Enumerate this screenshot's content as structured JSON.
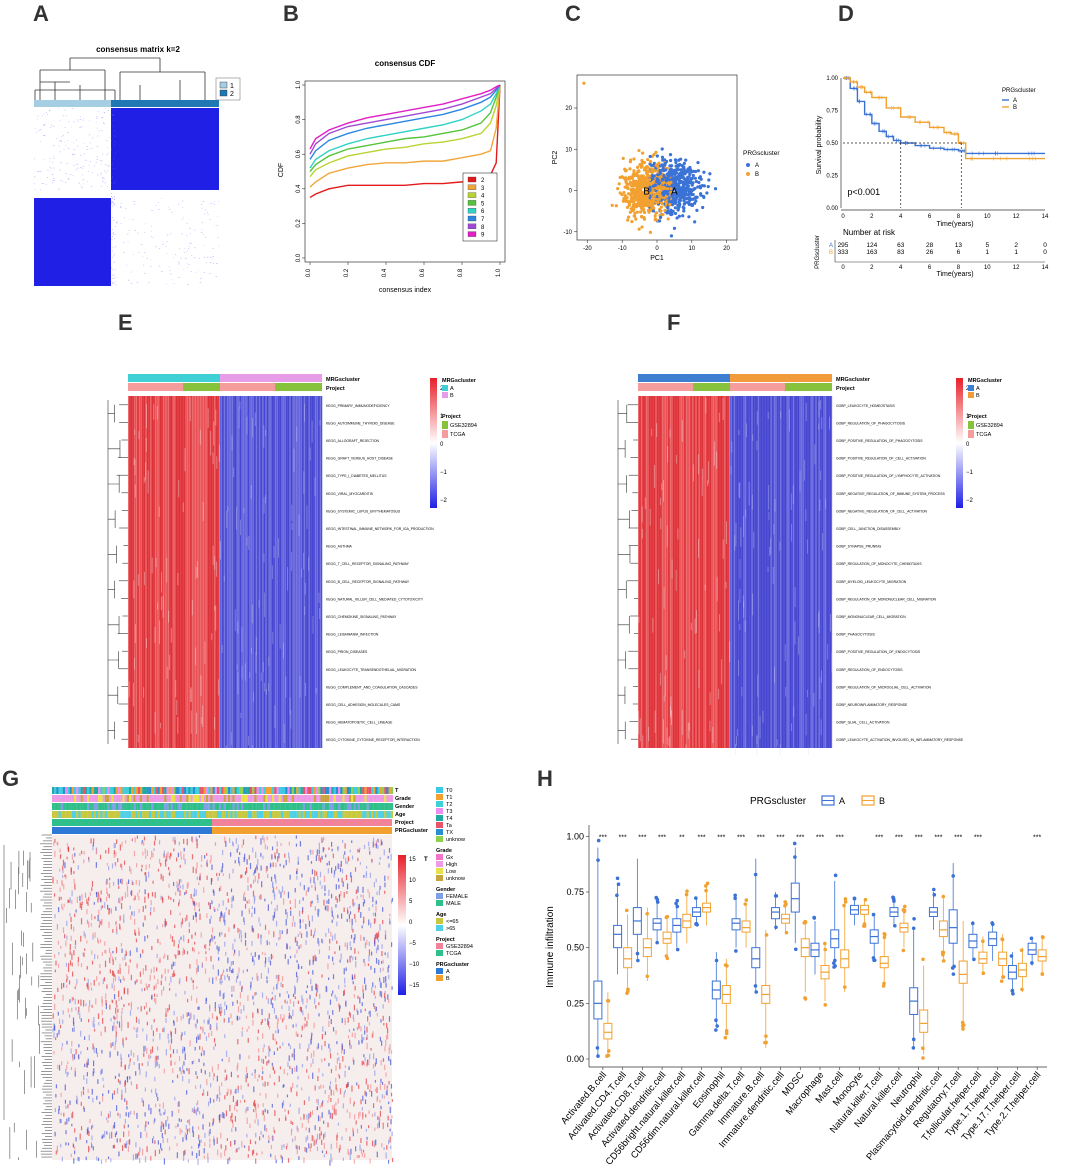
{
  "panel_letters": [
    "A",
    "B",
    "C",
    "D",
    "E",
    "F",
    "G",
    "H"
  ],
  "colors": {
    "heat_blue": "#1f1fe6",
    "cluster_light": "#a6cee3",
    "cluster_dark": "#1f78b4",
    "grpA": "#3a72d6",
    "grpB": "#f2a131",
    "red": "#e8202a",
    "teal": "#3fd0d6",
    "pink": "#e79ce8",
    "green": "#86c23b",
    "salmon": "#f59d9d",
    "orange": "#f29b3a",
    "blueE": "#3d7ed1"
  },
  "panel_a": {
    "title": "consensus matrix k=2",
    "legend": [
      "1",
      "2"
    ]
  },
  "panel_b": {
    "chart_data": {
      "type": "line",
      "title": "consensus CDF",
      "xlabel": "consensus index",
      "ylabel": "CDF",
      "xlim": [
        0,
        1
      ],
      "ylim": [
        0,
        1
      ],
      "x": [
        0,
        0.03,
        0.1,
        0.2,
        0.3,
        0.4,
        0.5,
        0.6,
        0.7,
        0.8,
        0.9,
        0.95,
        0.98,
        1.0
      ],
      "series": [
        {
          "name": "2",
          "color": "#e41a1c",
          "values": [
            0.35,
            0.37,
            0.4,
            0.42,
            0.42,
            0.42,
            0.42,
            0.43,
            0.43,
            0.44,
            0.45,
            0.48,
            0.55,
            1.0
          ]
        },
        {
          "name": "3",
          "color": "#f1a63a",
          "values": [
            0.41,
            0.44,
            0.49,
            0.52,
            0.54,
            0.55,
            0.55,
            0.56,
            0.56,
            0.58,
            0.6,
            0.62,
            0.75,
            1.0
          ]
        },
        {
          "name": "4",
          "color": "#b8d432",
          "values": [
            0.47,
            0.51,
            0.55,
            0.59,
            0.61,
            0.63,
            0.64,
            0.66,
            0.67,
            0.69,
            0.72,
            0.78,
            0.88,
            1.0
          ]
        },
        {
          "name": "5",
          "color": "#55c43c",
          "values": [
            0.5,
            0.54,
            0.59,
            0.63,
            0.65,
            0.67,
            0.69,
            0.7,
            0.72,
            0.74,
            0.78,
            0.84,
            0.93,
            1.0
          ]
        },
        {
          "name": "6",
          "color": "#2fd2c4",
          "values": [
            0.52,
            0.57,
            0.62,
            0.66,
            0.69,
            0.71,
            0.73,
            0.75,
            0.77,
            0.8,
            0.85,
            0.89,
            0.95,
            1.0
          ]
        },
        {
          "name": "7",
          "color": "#2b86e0",
          "values": [
            0.57,
            0.62,
            0.68,
            0.72,
            0.75,
            0.77,
            0.79,
            0.81,
            0.83,
            0.86,
            0.9,
            0.93,
            0.97,
            1.0
          ]
        },
        {
          "name": "8",
          "color": "#a149d6",
          "values": [
            0.6,
            0.66,
            0.72,
            0.76,
            0.78,
            0.8,
            0.82,
            0.84,
            0.86,
            0.89,
            0.93,
            0.95,
            0.98,
            1.0
          ]
        },
        {
          "name": "9",
          "color": "#e21fc6",
          "values": [
            0.63,
            0.69,
            0.74,
            0.78,
            0.81,
            0.83,
            0.85,
            0.87,
            0.89,
            0.92,
            0.95,
            0.97,
            0.99,
            1.0
          ]
        }
      ],
      "yticks": [
        "0.0",
        "0.2",
        "0.4",
        "0.6",
        "0.8",
        "1.0"
      ],
      "xticks": [
        "0.0",
        "0.2",
        "0.4",
        "0.6",
        "0.8",
        "1.0"
      ]
    }
  },
  "panel_c": {
    "chart_data": {
      "type": "scatter",
      "xlabel": "PC1",
      "ylabel": "PC2",
      "xlim": [
        -23,
        23
      ],
      "ylim": [
        -12,
        28
      ],
      "xticks": [
        "-20",
        "-10",
        "0",
        "10",
        "20"
      ],
      "yticks": [
        "-10",
        "0",
        "10",
        "20"
      ],
      "legend_title": "PRGscluster",
      "groups": [
        {
          "name": "A",
          "label": "A",
          "center": [
            5,
            1
          ],
          "spread": [
            5,
            4
          ],
          "n": 520
        },
        {
          "name": "B",
          "label": "B",
          "center": [
            -3,
            0
          ],
          "spread": [
            4.5,
            4
          ],
          "n": 580
        }
      ],
      "outlier": [
        -21,
        26
      ]
    }
  },
  "panel_d": {
    "chart_data": {
      "type": "line",
      "xlabel": "Time(years)",
      "ylabel": "Survival probability",
      "xlim": [
        0,
        14
      ],
      "ylim": [
        0,
        1
      ],
      "xticks": [
        "0",
        "2",
        "4",
        "6",
        "8",
        "10",
        "12",
        "14"
      ],
      "yticks": [
        "0.00",
        "0.25",
        "0.50",
        "0.75",
        "1.00"
      ],
      "pvalue": "p<0.001",
      "legend_title": "PRGscluster",
      "series": [
        {
          "name": "A",
          "color": "#3a72d6",
          "x": [
            0,
            0.5,
            1,
            1.5,
            2,
            2.5,
            3,
            3.5,
            4,
            5,
            6,
            7,
            8,
            8.5,
            10,
            12,
            14
          ],
          "values": [
            1.0,
            0.92,
            0.82,
            0.72,
            0.65,
            0.59,
            0.55,
            0.52,
            0.5,
            0.48,
            0.46,
            0.45,
            0.44,
            0.42,
            0.42,
            0.42,
            0.42
          ]
        },
        {
          "name": "B",
          "color": "#f2a131",
          "x": [
            0,
            0.5,
            1,
            1.5,
            2,
            3,
            4,
            5,
            6,
            7,
            7.5,
            8,
            8.5,
            10,
            12,
            14
          ],
          "values": [
            1.0,
            0.97,
            0.93,
            0.89,
            0.85,
            0.77,
            0.7,
            0.66,
            0.62,
            0.58,
            0.57,
            0.5,
            0.38,
            0.38,
            0.38,
            0.38
          ]
        }
      ],
      "median_markers": [
        4,
        8.2
      ],
      "risk_table": {
        "title": "Number at risk",
        "ylabel": "PRGscluster",
        "xlabel": "Time(years)",
        "rows": [
          {
            "name": "A",
            "values": [
              "295",
              "124",
              "63",
              "28",
              "13",
              "5",
              "2",
              "0"
            ]
          },
          {
            "name": "B",
            "values": [
              "333",
              "163",
              "83",
              "26",
              "6",
              "1",
              "1",
              "0"
            ]
          }
        ]
      }
    }
  },
  "panel_e": {
    "annotation_labels": [
      "MRGscluster",
      "Project"
    ],
    "legend": {
      "scale": [
        "2",
        "1",
        "0",
        "−1",
        "−2"
      ],
      "cluster_title": "MRGscluster",
      "cluster_items": [
        "A",
        "B"
      ],
      "project_title": "Project",
      "project_items": [
        "GSE32894",
        "TCGA"
      ]
    },
    "rows": [
      "KEGG_PRIMARY_IMMUNODEFICIENCY",
      "KEGG_AUTOIMMUNE_THYROID_DISEASE",
      "KEGG_ALLOGRAFT_REJECTION",
      "KEGG_GRAFT_VERSUS_HOST_DISEASE",
      "KEGG_TYPE_I_DIABETES_MELLITUS",
      "KEGG_VIRAL_MYOCARDITIS",
      "KEGG_SYSTEMIC_LUPUS_ERYTHEMATOSUS",
      "KEGG_INTESTINAL_IMMUNE_NETWORK_FOR_IGA_PRODUCTION",
      "KEGG_ASTHMA",
      "KEGG_T_CELL_RECEPTOR_SIGNALING_PATHWAY",
      "KEGG_B_CELL_RECEPTOR_SIGNALING_PATHWAY",
      "KEGG_NATURAL_KILLER_CELL_MEDIATED_CYTOTOXICITY",
      "KEGG_CHEMOKINE_SIGNALING_PATHWAY",
      "KEGG_LEISHMANIA_INFECTION",
      "KEGG_PRION_DISEASES",
      "KEGG_LEUKOCYTE_TRANSENDOTHELIAL_MIGRATION",
      "KEGG_COMPLEMENT_AND_COAGULATION_CASCADES",
      "KEGG_CELL_ADHESION_MOLECULES_CAMS",
      "KEGG_HEMATOPOIETIC_CELL_LINEAGE",
      "KEGG_CYTOKINE_CYTOKINE_RECEPTOR_INTERACTION"
    ]
  },
  "panel_f": {
    "annotation_labels": [
      "MRGscluster",
      "Project"
    ],
    "legend": {
      "scale": [
        "2",
        "1",
        "0",
        "−1",
        "−2"
      ],
      "cluster_title": "MRGscluster",
      "cluster_items": [
        "A",
        "B"
      ],
      "project_title": "Project",
      "project_items": [
        "GSE32894",
        "TCGA"
      ]
    },
    "rows": [
      "GOBP_LEUKOCYTE_HOMEOSTASIS",
      "GOBP_REGULATION_OF_PHAGOCYTOSIS",
      "GOBP_POSITIVE_REGULATION_OF_PHAGOCYTOSIS",
      "GOBP_POSITIVE_REGULATION_OF_CELL_ACTIVATION",
      "GOBP_POSITIVE_REGULATION_OF_LYMPHOCYTE_ACTIVATION",
      "GOBP_NEGATIVE_REGULATION_OF_IMMUNE_SYSTEM_PROCESS",
      "GOBP_NEGATIVE_REGULATION_OF_CELL_ACTIVATION",
      "GOBP_CELL_JUNCTION_DISASSEMBLY",
      "GOBP_SYNAPSE_PRUNING",
      "GOBP_REGULATION_OF_MONOCYTE_CHEMOTAXIS",
      "GOBP_MYELOID_LEUKOCYTE_MIGRATION",
      "GOBP_REGULATION_OF_MONONUCLEAR_CELL_MIGRATION",
      "GOBP_MONONUCLEAR_CELL_MIGRATION",
      "GOBP_PHAGOCYTOSIS",
      "GOBP_POSITIVE_REGULATION_OF_ENDOCYTOSIS",
      "GOBP_REGULATION_OF_ENDOCYTOSIS",
      "GOBP_REGULATION_OF_MICROGLIAL_CELL_ACTIVATION",
      "GOBP_NEUROINFLAMMATORY_RESPONSE",
      "GOBP_GLIAL_CELL_ACTIVATION",
      "GOBP_LEUKOCYTE_ACTIVATION_INVOLVED_IN_INFLAMMATORY_RESPONSE"
    ]
  },
  "panel_g": {
    "annotation_labels": [
      "T",
      "Grade",
      "Gender",
      "Age",
      "Project",
      "PRGscluster"
    ],
    "scale_title": "T",
    "scale": [
      "15",
      "10",
      "5",
      "0",
      "−5",
      "−10",
      "−15"
    ],
    "legend_groups": [
      {
        "title": "",
        "items": [
          {
            "label": "T0",
            "color": "#3cc8e6"
          },
          {
            "label": "T1",
            "color": "#f2a131"
          },
          {
            "label": "T2",
            "color": "#3fd0d6"
          },
          {
            "label": "T3",
            "color": "#ef8cf0"
          },
          {
            "label": "T4",
            "color": "#1fa9a0"
          },
          {
            "label": "Ta",
            "color": "#e8556b"
          },
          {
            "label": "TX",
            "color": "#2a8fd0"
          },
          {
            "label": "unknow",
            "color": "#8fd14f"
          }
        ]
      },
      {
        "title": "Grade",
        "items": [
          {
            "label": "Gx",
            "color": "#f275c9"
          },
          {
            "label": "High",
            "color": "#ee9be6"
          },
          {
            "label": "Low",
            "color": "#e6e247"
          },
          {
            "label": "unknow",
            "color": "#c8a43f"
          }
        ]
      },
      {
        "title": "Gender",
        "items": [
          {
            "label": "FEMALE",
            "color": "#7fa0e4"
          },
          {
            "label": "MALE",
            "color": "#2fbf8a"
          }
        ]
      },
      {
        "title": "Age",
        "items": [
          {
            "label": "<=65",
            "color": "#c7c83f"
          },
          {
            "label": ">65",
            "color": "#4fd0e6"
          }
        ]
      },
      {
        "title": "Project",
        "items": [
          {
            "label": "GSE32894",
            "color": "#f0829a"
          },
          {
            "label": "TCGA",
            "color": "#2fbf8a"
          }
        ]
      },
      {
        "title": "PRGscluster",
        "items": [
          {
            "label": "A",
            "color": "#2f79d6"
          },
          {
            "label": "B",
            "color": "#f2a131"
          }
        ]
      }
    ]
  },
  "panel_h": {
    "chart_data": {
      "type": "box",
      "ylabel": "Immune infiltration",
      "ylim": [
        0,
        1
      ],
      "yticks": [
        "0.00",
        "0.25",
        "0.50",
        "0.75",
        "1.00"
      ],
      "legend_title": "PRGscluster",
      "legend_items": [
        "A",
        "B"
      ],
      "categories": [
        "Activated.B.cell",
        "Activated.CD4.T.cell",
        "Activated.CD8.T.cell",
        "Activated.dendritic.cell",
        "CD56bright.natural.killer.cell",
        "CD56dim.natural.killer.cell",
        "Eosinophil",
        "Gamma.delta.T.cell",
        "Immature.B.cell",
        "Immature.dendritic.cell",
        "MDSC",
        "Macrophage",
        "Mast.cell",
        "Monocyte",
        "Natural.killer.T.cell",
        "Natural.killer.cell",
        "Neutrophil",
        "Plasmacytoid.dendritic.cell",
        "Regulatory.T.cell",
        "T.follicular.helper.cell",
        "Type.1.T.helper.cell",
        "Type.17.T.helper.cell",
        "Type.2.T.helper.cell"
      ],
      "significance": [
        "***",
        "***",
        "***",
        "***",
        "**",
        "***",
        "***",
        "***",
        "***",
        "***",
        "***",
        "***",
        "***",
        "",
        "***",
        "***",
        "***",
        "***",
        "***",
        "***",
        "",
        "",
        "***"
      ],
      "series": [
        {
          "name": "A",
          "color": "#3a72d6",
          "medians": [
            0.25,
            0.56,
            0.62,
            0.61,
            0.6,
            0.66,
            0.31,
            0.61,
            0.45,
            0.66,
            0.72,
            0.49,
            0.54,
            0.67,
            0.55,
            0.66,
            0.26,
            0.66,
            0.59,
            0.53,
            0.54,
            0.39,
            0.49
          ],
          "q1": [
            0.18,
            0.5,
            0.56,
            0.58,
            0.57,
            0.64,
            0.27,
            0.58,
            0.41,
            0.63,
            0.66,
            0.46,
            0.5,
            0.65,
            0.52,
            0.64,
            0.2,
            0.64,
            0.52,
            0.5,
            0.51,
            0.36,
            0.47
          ],
          "q3": [
            0.35,
            0.6,
            0.68,
            0.63,
            0.63,
            0.68,
            0.35,
            0.63,
            0.5,
            0.68,
            0.79,
            0.52,
            0.58,
            0.69,
            0.58,
            0.68,
            0.32,
            0.68,
            0.67,
            0.56,
            0.57,
            0.42,
            0.52
          ],
          "lo": [
            0.02,
            0.38,
            0.44,
            0.52,
            0.5,
            0.6,
            0.15,
            0.5,
            0.3,
            0.58,
            0.52,
            0.38,
            0.42,
            0.6,
            0.45,
            0.6,
            0.05,
            0.58,
            0.4,
            0.44,
            0.44,
            0.3,
            0.42
          ],
          "hi": [
            0.95,
            0.78,
            0.9,
            0.72,
            0.7,
            0.72,
            0.48,
            0.72,
            0.9,
            0.75,
            0.95,
            0.62,
            0.8,
            0.72,
            0.65,
            0.72,
            0.58,
            0.75,
            0.88,
            0.62,
            0.62,
            0.48,
            0.55
          ]
        },
        {
          "name": "B",
          "color": "#f2a131",
          "medians": [
            0.12,
            0.45,
            0.5,
            0.54,
            0.62,
            0.68,
            0.29,
            0.59,
            0.29,
            0.63,
            0.5,
            0.39,
            0.45,
            0.67,
            0.43,
            0.59,
            0.16,
            0.58,
            0.38,
            0.45,
            0.45,
            0.4,
            0.46
          ],
          "q1": [
            0.09,
            0.41,
            0.46,
            0.52,
            0.59,
            0.66,
            0.25,
            0.57,
            0.25,
            0.61,
            0.46,
            0.36,
            0.41,
            0.65,
            0.41,
            0.57,
            0.12,
            0.55,
            0.34,
            0.43,
            0.42,
            0.37,
            0.44
          ],
          "q3": [
            0.16,
            0.5,
            0.54,
            0.57,
            0.65,
            0.7,
            0.33,
            0.62,
            0.33,
            0.65,
            0.54,
            0.42,
            0.49,
            0.69,
            0.46,
            0.61,
            0.22,
            0.62,
            0.44,
            0.48,
            0.48,
            0.43,
            0.49
          ],
          "lo": [
            0.02,
            0.3,
            0.35,
            0.46,
            0.52,
            0.6,
            0.12,
            0.5,
            0.05,
            0.56,
            0.3,
            0.26,
            0.3,
            0.6,
            0.33,
            0.5,
            0.02,
            0.45,
            0.16,
            0.38,
            0.36,
            0.3,
            0.38
          ],
          "hi": [
            0.3,
            0.65,
            0.68,
            0.64,
            0.75,
            0.78,
            0.45,
            0.7,
            0.58,
            0.7,
            0.62,
            0.52,
            0.72,
            0.72,
            0.55,
            0.68,
            0.42,
            0.72,
            0.62,
            0.55,
            0.56,
            0.5,
            0.55
          ]
        }
      ]
    }
  }
}
